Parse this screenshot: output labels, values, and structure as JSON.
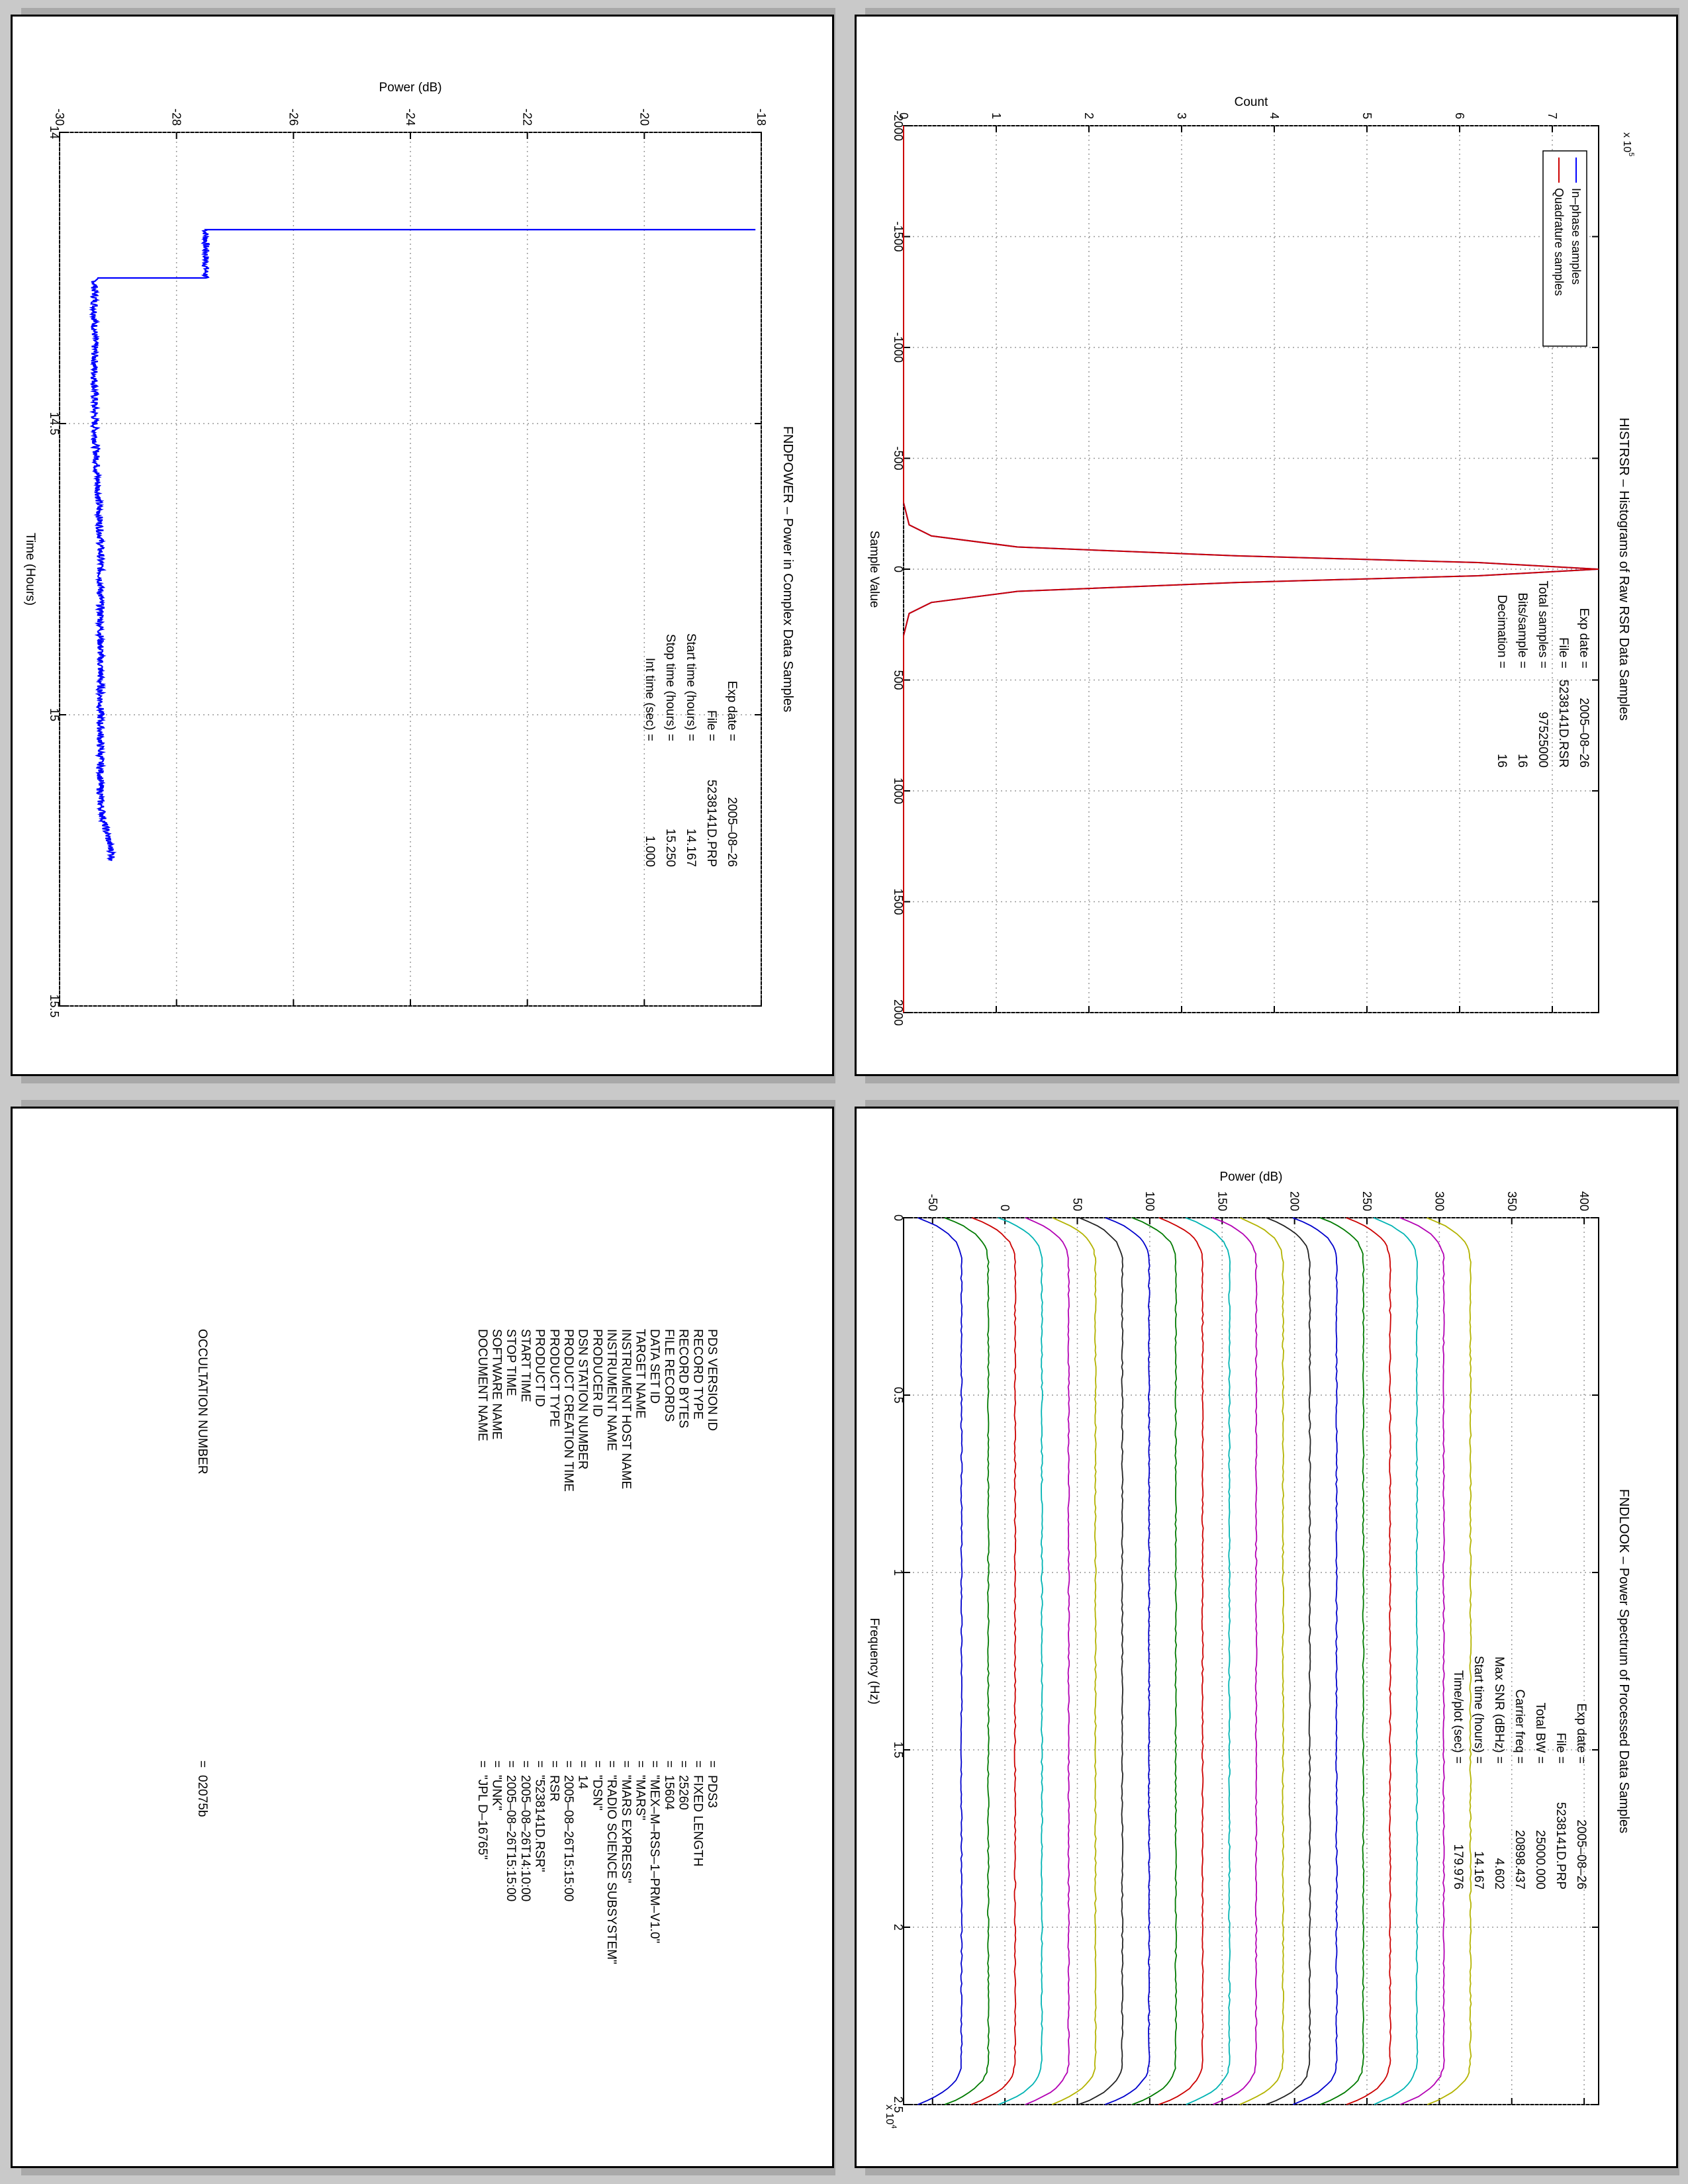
{
  "colors": {
    "page_bg": "#c9c9c9",
    "panel_shadow": "#a9a9a9",
    "blue": "#0000ff",
    "red": "#cc0000",
    "inphase_legend": "#0000ff",
    "quadrature_legend": "#cc0000",
    "spectrum_palette": [
      "#0000cc",
      "#007a00",
      "#cc0000",
      "#00b3b3",
      "#b300b3",
      "#b3b300",
      "#222222"
    ]
  },
  "panels": {
    "fndpower": {
      "chart_data": {
        "type": "line",
        "title": "FNDPOWER – Power in Complex Data Samples",
        "xlabel": "Time (Hours)",
        "ylabel": "Power (dB)",
        "xlim": [
          14,
          15.5
        ],
        "ylim": [
          -30,
          -18
        ],
        "xticks": [
          "14",
          "14.5",
          "15",
          "15.5"
        ],
        "yticks": [
          "-30",
          "-28",
          "-26",
          "-24",
          "-22",
          "-20",
          "-18"
        ],
        "grid": true,
        "series": [
          {
            "color": "#0000ff",
            "x": [
              14.167,
              14.167,
              14.2,
              14.25,
              14.25,
              14.3,
              14.4,
              14.5,
              14.6,
              14.7,
              14.8,
              14.9,
              15.0,
              15.05,
              15.1,
              15.15,
              15.18,
              15.2,
              15.22,
              15.24,
              15.25
            ],
            "y": [
              -18.1,
              -27.5,
              -27.5,
              -27.5,
              -29.4,
              -29.4,
              -29.4,
              -29.4,
              -29.35,
              -29.3,
              -29.3,
              -29.3,
              -29.3,
              -29.3,
              -29.3,
              -29.3,
              -29.25,
              -29.2,
              -29.15,
              -29.1,
              -29.1
            ]
          }
        ],
        "annotations": {
          "labels": [
            "Exp date =",
            "File =",
            "Start time (hours) =",
            "Stop time (hours) =",
            "Int time (sec) ="
          ],
          "values": [
            "2005–08–26",
            "5238141D.PRP",
            "14.167",
            "15.250",
            "1.000"
          ]
        }
      }
    },
    "histrsr": {
      "chart_data": {
        "type": "line",
        "title": "HISTRSR – Histograms of Raw RSR Data Samples",
        "xlabel": "Sample Value",
        "ylabel": "Count",
        "xlim": [
          -2000,
          2000
        ],
        "ylim": [
          0,
          7.5
        ],
        "exponent_label": "x 10",
        "exponent_power": "5",
        "xticks": [
          "-2000",
          "-1500",
          "-1000",
          "-500",
          "0",
          "500",
          "1000",
          "1500",
          "2000"
        ],
        "yticks": [
          "0",
          "1",
          "2",
          "3",
          "4",
          "5",
          "6",
          "7"
        ],
        "grid": true,
        "legend_position": "top-right",
        "series": [
          {
            "name": "In–phase samples",
            "color": "#0000ff",
            "x": [
              -2000,
              -300,
              -200,
              -150,
              -100,
              -60,
              -30,
              0,
              30,
              60,
              100,
              150,
              200,
              300,
              2000
            ],
            "y": [
              0,
              0,
              0.06,
              0.3,
              1.23,
              3.6,
              6.2,
              7.5,
              6.2,
              3.6,
              1.23,
              0.3,
              0.06,
              0,
              0
            ]
          },
          {
            "name": "Quadrature samples",
            "color": "#cc0000",
            "x": [
              -2000,
              -300,
              -200,
              -150,
              -100,
              -60,
              -30,
              0,
              30,
              60,
              100,
              150,
              200,
              300,
              2000
            ],
            "y": [
              0,
              0,
              0.06,
              0.3,
              1.23,
              3.6,
              6.2,
              7.5,
              6.2,
              3.6,
              1.23,
              0.3,
              0.06,
              0,
              0
            ]
          }
        ],
        "annotations": {
          "labels": [
            "Exp date =",
            "File =",
            "Total samples =",
            "Bits/sample =",
            "Decimation ="
          ],
          "values": [
            "2005–08–26",
            "5238141D.RSR",
            "97525000",
            "16",
            "16"
          ]
        }
      }
    },
    "fndlook": {
      "chart_data": {
        "type": "line",
        "title": "FNDLOOK – Power Spectrum of Processed Data Samples",
        "xlabel": "Frequency (Hz)",
        "ylabel": "Power (dB)",
        "xlim": [
          0,
          2.5
        ],
        "ylim": [
          -70,
          410
        ],
        "exponent_label": "x 10",
        "exponent_power": "4",
        "xticks": [
          "0",
          "0.5",
          "1",
          "1.5",
          "2",
          "2.5"
        ],
        "yticks": [
          "-50",
          "0",
          "50",
          "100",
          "150",
          "200",
          "250",
          "300",
          "350",
          "400"
        ],
        "ytick_values": [
          -50,
          0,
          50,
          100,
          150,
          200,
          250,
          300,
          350,
          400
        ],
        "grid": true,
        "series_count": 20,
        "series_top_db": -30,
        "series_step_db": 18.5,
        "series_drop_db": 30,
        "annotations": {
          "labels": [
            "Exp date =",
            "File =",
            "Total BW =",
            "Carrier freq =",
            "Max SNR (dBHz) =",
            "Start time (hours) =",
            "Time/plot (sec) ="
          ],
          "values": [
            "2005–08–26",
            "5238141D.PRP",
            "25000.000",
            "20898.437",
            "4.602",
            "14.167",
            "179.976"
          ]
        }
      }
    },
    "label": {
      "keys": [
        "PDS VERSION ID",
        "RECORD TYPE",
        "RECORD BYTES",
        "FILE RECORDS",
        "DATA SET ID",
        "TARGET NAME",
        "INSTRUMENT HOST NAME",
        "INSTRUMENT NAME",
        "PRODUCER ID",
        "DSN STATION NUMBER",
        "PRODUCT CREATION TIME",
        "PRODUCT TYPE",
        "PRODUCT ID",
        "START TIME",
        "STOP TIME",
        "SOFTWARE NAME",
        "DOCUMENT NAME"
      ],
      "values": [
        "PDS3",
        "FIXED LENGTH",
        "25260",
        "15604",
        "\"MEX–M–RSS–1–PRM–V1.0\"",
        "\"MARS\"",
        "\"MARS EXPRESS\"",
        "\"RADIO SCIENCE SUBSYSTEM\"",
        "\"DSN\"",
        "14",
        "2005–08–26T15:15:00",
        "RSR",
        "\"5238141D.RSR\"",
        "2005–08–26T14:10:00",
        "2005–08–26T15:15:00",
        "\"UNK\"",
        "\"JPL D–16765\""
      ],
      "occultation_key": "OCCULTATION NUMBER",
      "occultation_value": "02075b",
      "equals": "="
    }
  }
}
